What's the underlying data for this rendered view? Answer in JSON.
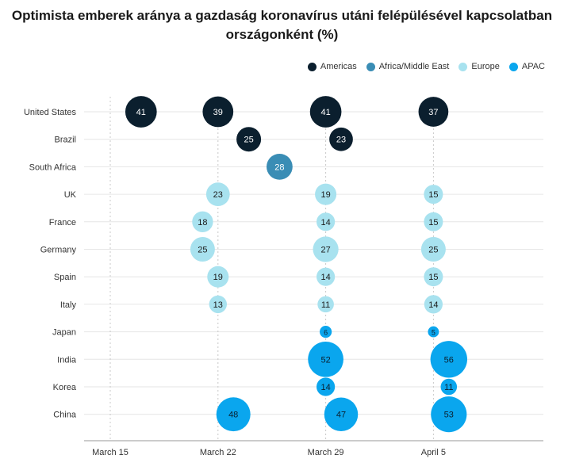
{
  "chart_data": {
    "type": "scatter",
    "title_line1": "Optimista emberek aránya a gazdaság koronavírus utáni felépülésével kapcsolatban",
    "title_line2": "országonként (%)",
    "x_ticks": [
      "March 15",
      "March 22",
      "March 29",
      "April 5"
    ],
    "categories": [
      "United States",
      "Brazil",
      "South Africa",
      "UK",
      "France",
      "Germany",
      "Spain",
      "Italy",
      "Japan",
      "India",
      "Korea",
      "China"
    ],
    "colors": {
      "Americas": "#0b1f2e",
      "Africa/Middle East": "#3a8db5",
      "Europe": "#a8e2ef",
      "APAC": "#0aa6ee"
    },
    "legend": [
      "Americas",
      "Africa/Middle East",
      "Europe",
      "APAC"
    ],
    "legend_position": "top-right",
    "grid": true,
    "points": [
      {
        "country": "United States",
        "region": "Americas",
        "date": "March 17",
        "value": 41
      },
      {
        "country": "United States",
        "region": "Americas",
        "date": "March 22",
        "value": 39
      },
      {
        "country": "United States",
        "region": "Americas",
        "date": "March 29",
        "value": 41
      },
      {
        "country": "United States",
        "region": "Americas",
        "date": "April 5",
        "value": 37
      },
      {
        "country": "Brazil",
        "region": "Americas",
        "date": "March 24",
        "value": 25
      },
      {
        "country": "Brazil",
        "region": "Americas",
        "date": "March 30",
        "value": 23
      },
      {
        "country": "South Africa",
        "region": "Africa/Middle East",
        "date": "March 26",
        "value": 28
      },
      {
        "country": "UK",
        "region": "Europe",
        "date": "March 22",
        "value": 23
      },
      {
        "country": "UK",
        "region": "Europe",
        "date": "March 29",
        "value": 19
      },
      {
        "country": "UK",
        "region": "Europe",
        "date": "April 5",
        "value": 15
      },
      {
        "country": "France",
        "region": "Europe",
        "date": "March 21",
        "value": 18
      },
      {
        "country": "France",
        "region": "Europe",
        "date": "March 29",
        "value": 14
      },
      {
        "country": "France",
        "region": "Europe",
        "date": "April 5",
        "value": 15
      },
      {
        "country": "Germany",
        "region": "Europe",
        "date": "March 21",
        "value": 25
      },
      {
        "country": "Germany",
        "region": "Europe",
        "date": "March 29",
        "value": 27
      },
      {
        "country": "Germany",
        "region": "Europe",
        "date": "April 5",
        "value": 25
      },
      {
        "country": "Spain",
        "region": "Europe",
        "date": "March 22",
        "value": 19
      },
      {
        "country": "Spain",
        "region": "Europe",
        "date": "March 29",
        "value": 14
      },
      {
        "country": "Spain",
        "region": "Europe",
        "date": "April 5",
        "value": 15
      },
      {
        "country": "Italy",
        "region": "Europe",
        "date": "March 22",
        "value": 13
      },
      {
        "country": "Italy",
        "region": "Europe",
        "date": "March 29",
        "value": 11
      },
      {
        "country": "Italy",
        "region": "Europe",
        "date": "April 5",
        "value": 14
      },
      {
        "country": "Japan",
        "region": "APAC",
        "date": "March 29",
        "value": 6
      },
      {
        "country": "Japan",
        "region": "APAC",
        "date": "April 5",
        "value": 5
      },
      {
        "country": "India",
        "region": "APAC",
        "date": "March 29",
        "value": 52
      },
      {
        "country": "India",
        "region": "APAC",
        "date": "April 6",
        "value": 56
      },
      {
        "country": "Korea",
        "region": "APAC",
        "date": "March 29",
        "value": 14
      },
      {
        "country": "Korea",
        "region": "APAC",
        "date": "April 6",
        "value": 11
      },
      {
        "country": "China",
        "region": "APAC",
        "date": "March 23",
        "value": 48
      },
      {
        "country": "China",
        "region": "APAC",
        "date": "March 30",
        "value": 47
      },
      {
        "country": "China",
        "region": "APAC",
        "date": "April 6",
        "value": 53
      }
    ]
  }
}
